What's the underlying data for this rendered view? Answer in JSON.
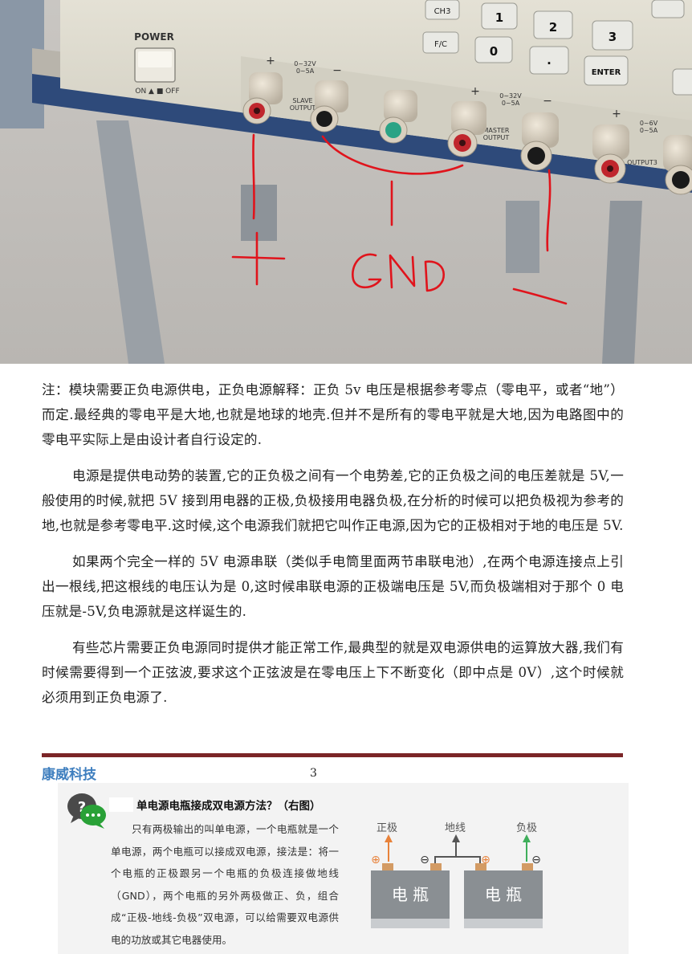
{
  "photo": {
    "panel_labels": {
      "ch3": "CH3",
      "fc": "F/C",
      "power": "POWER",
      "on_off": "ON ▲ ■ OFF",
      "enter": "ENTER",
      "slave_range": "0~32V\n0~5A",
      "master_range": "0~32V\n0~5A",
      "output3_range": "0~6V\n0~5A",
      "slave": "SLAVE\nOUTPUT",
      "master": "MASTER\nOUTPUT",
      "output3": "OUTPUT3",
      "plus": "+",
      "minus": "−"
    },
    "keypad": [
      "1",
      "2",
      "3",
      "0",
      "."
    ],
    "annotations": {
      "positive": "+",
      "ground": "GND",
      "negative": "−"
    },
    "colors": {
      "annotation": "#e0141c",
      "panel": "#d9d6c9",
      "bench_edge": "#2e4a7a"
    }
  },
  "document": {
    "paragraphs": [
      "注：模块需要正负电源供电，正负电源解释：正负 5v 电压是根据参考零点（零电平，或者“地”）而定.最经典的零电平是大地,也就是地球的地壳.但并不是所有的零电平就是大地,因为电路图中的零电平实际上是由设计者自行设定的.",
      "电源是提供电动势的装置,它的正负极之间有一个电势差,它的正负极之间的电压差就是 5V,一般使用的时候,就把 5V 接到用电器的正极,负极接用电器负极,在分析的时候可以把负极视为参考的地,也就是参考零电平.这时候,这个电源我们就把它叫作正电源,因为它的正极相对于地的电压是 5V.",
      "如果两个完全一样的 5V 电源串联（类似手电筒里面两节串联电池）,在两个电源连接点上引出一根线,把这根线的电压认为是 0,这时候串联电源的正极端电压是 5V,而负极端相对于那个 0 电压就是-5V,负电源就是这样诞生的.",
      "有些芯片需要正负电源同时提供才能正常工作,最典型的就是双电源供电的运算放大器,我们有时候需要得到一个正弦波,要求这个正弦波是在零电压上下不断变化（即中点是 0V）,这个时候就必须用到正负电源了."
    ],
    "footer": {
      "brand": "康威科技",
      "page": "3",
      "rule_color": "#7b2527",
      "brand_color": "#3f7fbf"
    }
  },
  "card": {
    "title": "单电源电瓶接成双电源方法？（右图）",
    "body": "只有两极输出的叫单电源，一个电瓶就是一个单电源，两个电瓶可以接成双电源，接法是：将一个电瓶的正极跟另一个电瓶的负极连接做地线（GND），两个电瓶的另外两极做正、负，组合成“正极-地线-负极”双电源，可以给需要双电源供电的功放或其它电器使用。",
    "diagram": {
      "label_positive": "正极",
      "label_ground": "地线",
      "label_negative": "负极",
      "battery1": "电 瓶",
      "battery2": "电 瓶",
      "plus_symbol": "⊕",
      "minus_symbol": "⊖"
    },
    "colors": {
      "positive": "#e8823a",
      "negative": "#3fae5b",
      "battery": "#8a8f93"
    }
  }
}
